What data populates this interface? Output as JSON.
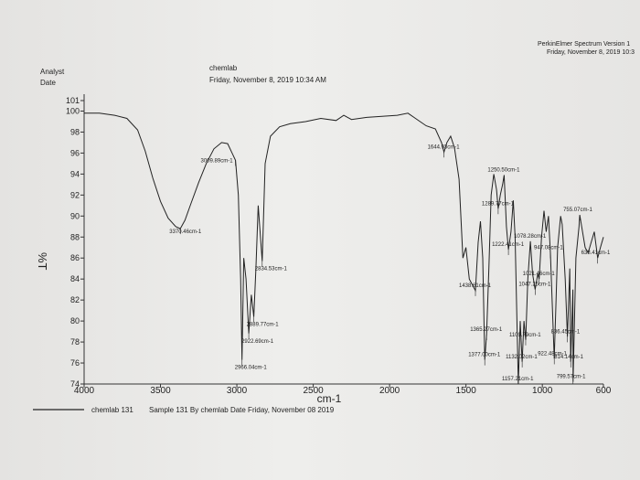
{
  "header": {
    "vendor_line": "PerkinElmer Spectrum Version 1",
    "vendor_date": "Friday, November 8, 2019 10:3",
    "analyst_label": "Analyst",
    "date_label": "Date",
    "analyst_value": "chemlab",
    "date_value": "Friday, November 8, 2019 10:34 AM"
  },
  "chart_data": {
    "type": "line",
    "title": "",
    "xlabel": "cm-1",
    "ylabel": "%T",
    "xlim": [
      4000,
      600
    ],
    "ylim": [
      74,
      101
    ],
    "x_ticks": [
      "4000",
      "3500",
      "3000",
      "2500",
      "2000",
      "1500",
      "1000",
      "600"
    ],
    "y_ticks": [
      "101",
      "100",
      "98",
      "96",
      "94",
      "92",
      "90",
      "88",
      "86",
      "84",
      "82",
      "80",
      "78",
      "76",
      "74"
    ],
    "grid": false,
    "line_color": "#222222",
    "series": [
      {
        "name": "",
        "points": [
          [
            4000,
            99.8
          ],
          [
            3900,
            99.8
          ],
          [
            3800,
            99.6
          ],
          [
            3720,
            99.3
          ],
          [
            3650,
            98.2
          ],
          [
            3600,
            96.2
          ],
          [
            3550,
            93.6
          ],
          [
            3500,
            91.4
          ],
          [
            3450,
            89.8
          ],
          [
            3400,
            89.0
          ],
          [
            3370,
            88.8
          ],
          [
            3340,
            89.6
          ],
          [
            3300,
            91.2
          ],
          [
            3250,
            93.2
          ],
          [
            3200,
            95.0
          ],
          [
            3150,
            96.4
          ],
          [
            3100,
            97.0
          ],
          [
            3060,
            96.9
          ],
          [
            3009,
            95.3
          ],
          [
            2990,
            92.0
          ],
          [
            2975,
            84.0
          ],
          [
            2966,
            76.3
          ],
          [
            2955,
            86.0
          ],
          [
            2940,
            84.0
          ],
          [
            2922,
            78.8
          ],
          [
            2905,
            82.5
          ],
          [
            2889,
            80.4
          ],
          [
            2875,
            85.0
          ],
          [
            2860,
            91.0
          ],
          [
            2834,
            85.7
          ],
          [
            2815,
            95.0
          ],
          [
            2780,
            97.6
          ],
          [
            2720,
            98.5
          ],
          [
            2650,
            98.8
          ],
          [
            2550,
            99.0
          ],
          [
            2450,
            99.3
          ],
          [
            2350,
            99.1
          ],
          [
            2300,
            99.6
          ],
          [
            2250,
            99.2
          ],
          [
            2150,
            99.4
          ],
          [
            2050,
            99.5
          ],
          [
            1950,
            99.6
          ],
          [
            1880,
            99.8
          ],
          [
            1840,
            99.4
          ],
          [
            1800,
            99.0
          ],
          [
            1760,
            98.6
          ],
          [
            1700,
            98.3
          ],
          [
            1660,
            97.0
          ],
          [
            1644,
            96.1
          ],
          [
            1625,
            97.0
          ],
          [
            1600,
            97.6
          ],
          [
            1575,
            96.5
          ],
          [
            1545,
            93.5
          ],
          [
            1520,
            86.0
          ],
          [
            1500,
            87.0
          ],
          [
            1478,
            84.0
          ],
          [
            1460,
            83.5
          ],
          [
            1438,
            82.9
          ],
          [
            1420,
            87.5
          ],
          [
            1405,
            89.5
          ],
          [
            1390,
            86.0
          ],
          [
            1377,
            76.3
          ],
          [
            1365,
            78.7
          ],
          [
            1350,
            85.0
          ],
          [
            1335,
            92.0
          ],
          [
            1318,
            94.0
          ],
          [
            1300,
            92.5
          ],
          [
            1289,
            90.7
          ],
          [
            1275,
            92.0
          ],
          [
            1260,
            93.0
          ],
          [
            1250,
            93.9
          ],
          [
            1235,
            89.0
          ],
          [
            1222,
            86.8
          ],
          [
            1205,
            88.5
          ],
          [
            1190,
            91.5
          ],
          [
            1178,
            88.0
          ],
          [
            1157,
            74.0
          ],
          [
            1145,
            80.0
          ],
          [
            1132,
            76.1
          ],
          [
            1120,
            80.0
          ],
          [
            1109,
            78.2
          ],
          [
            1095,
            84.0
          ],
          [
            1078,
            87.6
          ],
          [
            1064,
            84.5
          ],
          [
            1047,
            83.0
          ],
          [
            1030,
            84.5
          ],
          [
            1021,
            84.0
          ],
          [
            1005,
            88.0
          ],
          [
            989,
            90.5
          ],
          [
            975,
            88.5
          ],
          [
            960,
            90.0
          ],
          [
            947,
            86.5
          ],
          [
            922,
            76.4
          ],
          [
            910,
            82.0
          ],
          [
            900,
            87.0
          ],
          [
            880,
            90.0
          ],
          [
            870,
            89.2
          ],
          [
            850,
            84.0
          ],
          [
            836,
            78.5
          ],
          [
            820,
            85.0
          ],
          [
            814,
            76.1
          ],
          [
            800,
            83.0
          ],
          [
            799,
            74.2
          ],
          [
            780,
            86.0
          ],
          [
            760,
            89.0
          ],
          [
            755,
            90.1
          ],
          [
            720,
            87.0
          ],
          [
            700,
            86.5
          ],
          [
            680,
            87.5
          ],
          [
            660,
            88.5
          ],
          [
            638,
            86.0
          ],
          [
            620,
            87.0
          ],
          [
            600,
            88.0
          ]
        ]
      }
    ],
    "annotations": [
      {
        "label": "3370.46cm-1",
        "x": 3370,
        "y": 88.8
      },
      {
        "label": "3009.89cm-1",
        "x": 3009,
        "y": 95.3
      },
      {
        "label": "2966.04cm-1",
        "x": 2966,
        "y": 76.3
      },
      {
        "label": "2922.69cm-1",
        "x": 2922,
        "y": 78.8
      },
      {
        "label": "2889.77cm-1",
        "x": 2889,
        "y": 80.4
      },
      {
        "label": "2834.53cm-1",
        "x": 2834,
        "y": 85.7
      },
      {
        "label": "1644.93cm-1",
        "x": 1644,
        "y": 96.1
      },
      {
        "label": "1438.61cm-1",
        "x": 1438,
        "y": 82.9
      },
      {
        "label": "1377.00cm-1",
        "x": 1377,
        "y": 76.3
      },
      {
        "label": "1365.27cm-1",
        "x": 1365,
        "y": 78.7
      },
      {
        "label": "1289.77cm-1",
        "x": 1289,
        "y": 90.7
      },
      {
        "label": "1250.50cm-1",
        "x": 1250,
        "y": 93.9
      },
      {
        "label": "1222.41cm-1",
        "x": 1222,
        "y": 86.8
      },
      {
        "label": "1157.21cm-1",
        "x": 1157,
        "y": 74.0
      },
      {
        "label": "1132.02cm-1",
        "x": 1132,
        "y": 76.1
      },
      {
        "label": "1109.79cm-1",
        "x": 1109,
        "y": 78.2
      },
      {
        "label": "1078.28cm-1",
        "x": 1078,
        "y": 87.6
      },
      {
        "label": "1047.25cm-1",
        "x": 1047,
        "y": 83.0
      },
      {
        "label": "1021.46cm-1",
        "x": 1021,
        "y": 84.0
      },
      {
        "label": "947.08cm-1",
        "x": 947,
        "y": 86.5
      },
      {
        "label": "922.48cm-1",
        "x": 922,
        "y": 76.4
      },
      {
        "label": "836.45cm-1",
        "x": 836,
        "y": 78.5
      },
      {
        "label": "814.14cm-1",
        "x": 814,
        "y": 76.1
      },
      {
        "label": "799.57cm-1",
        "x": 799,
        "y": 74.2
      },
      {
        "label": "755.07cm-1",
        "x": 755,
        "y": 90.1
      },
      {
        "label": "638.41cm-1",
        "x": 638,
        "y": 86.0
      }
    ]
  },
  "legend": {
    "series_label": "chemlab 131",
    "sample_text": "Sample 131 By chemlab Date Friday, November 08 2019"
  }
}
